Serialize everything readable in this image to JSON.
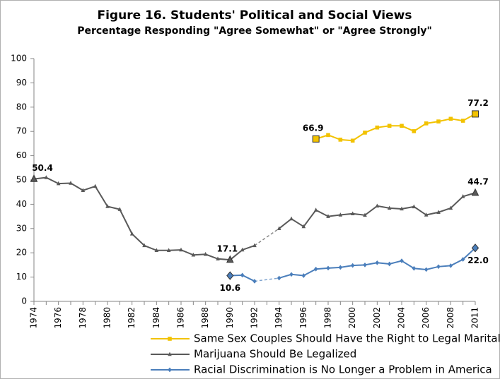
{
  "chart_data": {
    "type": "line",
    "title": "Figure 16.  Students' Political and Social Views",
    "subtitle": "Percentage Responding \"Agree Somewhat\" or \"Agree Strongly\"",
    "categories": [
      1974,
      null,
      1976,
      null,
      1978,
      null,
      1980,
      null,
      1982,
      null,
      1984,
      null,
      1986,
      null,
      1988,
      null,
      1990,
      null,
      1992,
      null,
      1994,
      null,
      1996,
      null,
      1998,
      null,
      2000,
      null,
      2002,
      null,
      2004,
      null,
      2006,
      null,
      2008,
      null,
      2011
    ],
    "series": [
      {
        "name": "Same Sex Couples Should Have the Right to Legal Marital Status",
        "color": "#f2c200",
        "marker": "square",
        "values": [
          null,
          null,
          null,
          null,
          null,
          null,
          null,
          null,
          null,
          null,
          null,
          null,
          null,
          null,
          null,
          null,
          null,
          null,
          null,
          null,
          null,
          null,
          null,
          66.9,
          68.5,
          66.6,
          66.2,
          69.5,
          71.6,
          72.3,
          72.3,
          70.1,
          73.3,
          74.1,
          75.2,
          74.4,
          77.2
        ],
        "value_labels": [
          null,
          null,
          null,
          null,
          null,
          null,
          null,
          null,
          null,
          null,
          null,
          null,
          null,
          null,
          null,
          null,
          null,
          null,
          null,
          null,
          null,
          null,
          null,
          "66.9",
          null,
          null,
          null,
          null,
          null,
          null,
          null,
          null,
          null,
          null,
          null,
          null,
          "77.2"
        ]
      },
      {
        "name": "Marijuana Should Be Legalized",
        "color": "#595959",
        "marker": "triangle",
        "values": [
          50.4,
          51.0,
          48.5,
          48.7,
          45.7,
          47.4,
          39.1,
          37.9,
          27.8,
          23.0,
          21.0,
          21.0,
          21.2,
          19.1,
          19.4,
          17.5,
          17.1,
          21.2,
          23.0,
          null,
          30.0,
          34.0,
          30.8,
          37.6,
          35.0,
          35.6,
          36.1,
          35.5,
          39.3,
          38.4,
          38.1,
          39.0,
          35.6,
          36.7,
          38.4,
          43.2,
          44.7
        ],
        "value_labels": [
          "50.4",
          null,
          null,
          null,
          null,
          null,
          null,
          null,
          null,
          null,
          null,
          null,
          null,
          null,
          null,
          null,
          "17.1",
          null,
          null,
          null,
          null,
          null,
          null,
          null,
          null,
          null,
          null,
          null,
          null,
          null,
          null,
          null,
          null,
          null,
          null,
          null,
          "44.7"
        ]
      },
      {
        "name": "Racial Discrimination is No Longer a Problem in America",
        "color": "#4a7ebb",
        "marker": "diamond",
        "values": [
          null,
          null,
          null,
          null,
          null,
          null,
          null,
          null,
          null,
          null,
          null,
          null,
          null,
          null,
          null,
          null,
          10.6,
          10.8,
          8.3,
          null,
          9.6,
          11.1,
          10.6,
          13.3,
          13.7,
          14.0,
          14.8,
          15.0,
          15.9,
          15.4,
          16.7,
          13.6,
          13.1,
          14.3,
          14.7,
          17.3,
          22.0
        ],
        "value_labels": [
          null,
          null,
          null,
          null,
          null,
          null,
          null,
          null,
          null,
          null,
          null,
          null,
          null,
          null,
          null,
          null,
          "10.6",
          null,
          null,
          null,
          null,
          null,
          null,
          null,
          null,
          null,
          null,
          null,
          null,
          null,
          null,
          null,
          null,
          null,
          null,
          null,
          "22.0"
        ]
      }
    ],
    "ylim": [
      0,
      100
    ],
    "yticks": [
      0,
      10,
      20,
      30,
      40,
      50,
      60,
      70,
      80,
      90,
      100
    ],
    "grid": false
  }
}
